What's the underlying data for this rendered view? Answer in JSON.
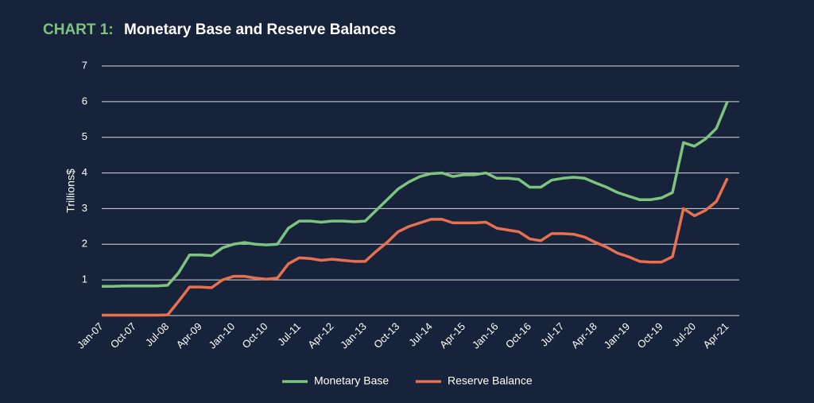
{
  "chart_data": {
    "type": "line",
    "title_prefix": "CHART 1:",
    "title": "Monetary Base and Reserve Balances",
    "y_label": "Trillions$",
    "categories": [
      "Jan-07",
      null,
      null,
      "Oct-07",
      null,
      null,
      "Jul-08",
      null,
      null,
      "Apr-09",
      null,
      null,
      "Jan-10",
      null,
      null,
      "Oct-10",
      null,
      null,
      "Jul-11",
      null,
      null,
      "Apr-12",
      null,
      null,
      "Jan-13",
      null,
      null,
      "Oct-13",
      null,
      null,
      "Jul-14",
      null,
      null,
      "Apr-15",
      null,
      null,
      "Jan-16",
      null,
      null,
      "Oct-16",
      null,
      null,
      "Jul-17",
      null,
      null,
      "Apr-18",
      null,
      null,
      "Jan-19",
      null,
      null,
      "Oct-19",
      null,
      null,
      "Jul-20",
      null,
      null,
      "Apr-21"
    ],
    "series": [
      {
        "name": "Monetary Base",
        "color": "#7dc47f",
        "values": [
          0.82,
          0.82,
          0.83,
          0.83,
          0.83,
          0.83,
          0.85,
          1.2,
          1.7,
          1.7,
          1.68,
          1.9,
          2.0,
          2.05,
          2.0,
          1.98,
          2.0,
          2.45,
          2.65,
          2.65,
          2.62,
          2.65,
          2.65,
          2.63,
          2.65,
          2.95,
          3.25,
          3.55,
          3.75,
          3.9,
          3.98,
          4.0,
          3.9,
          3.95,
          3.95,
          4.0,
          3.85,
          3.85,
          3.82,
          3.6,
          3.6,
          3.8,
          3.85,
          3.88,
          3.85,
          3.72,
          3.6,
          3.45,
          3.35,
          3.25,
          3.25,
          3.3,
          3.45,
          4.85,
          4.75,
          4.95,
          5.25,
          6.0
        ]
      },
      {
        "name": "Reserve Balance",
        "color": "#e8704e",
        "values": [
          0.01,
          0.01,
          0.01,
          0.01,
          0.01,
          0.01,
          0.02,
          0.4,
          0.8,
          0.8,
          0.78,
          1.0,
          1.1,
          1.1,
          1.05,
          1.02,
          1.05,
          1.45,
          1.62,
          1.6,
          1.55,
          1.58,
          1.55,
          1.52,
          1.52,
          1.8,
          2.05,
          2.35,
          2.5,
          2.6,
          2.7,
          2.7,
          2.6,
          2.6,
          2.6,
          2.62,
          2.45,
          2.4,
          2.35,
          2.15,
          2.1,
          2.3,
          2.3,
          2.28,
          2.2,
          2.05,
          1.92,
          1.75,
          1.65,
          1.52,
          1.5,
          1.5,
          1.65,
          3.0,
          2.8,
          2.95,
          3.2,
          3.85
        ]
      }
    ],
    "ylim": [
      0,
      7
    ],
    "yticks": [
      1,
      2,
      3,
      4,
      5,
      6,
      7
    ],
    "grid": true
  }
}
